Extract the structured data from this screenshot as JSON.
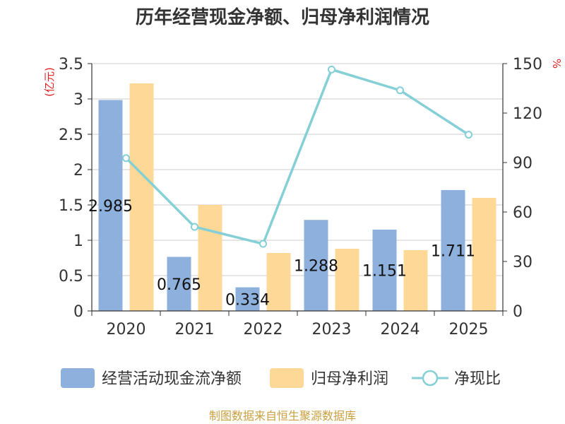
{
  "title": "历年经营现金净额、归母净利润情况",
  "source": "制图数据来自恒生聚源数据库",
  "chart_data": {
    "type": "bar",
    "categories": [
      "2020",
      "2021",
      "2022",
      "2023",
      "2024",
      "2025"
    ],
    "series": [
      {
        "name": "经营活动现金流净额",
        "kind": "bar",
        "axis": "left",
        "color": "#8eb0dc",
        "values": [
          2.985,
          0.765,
          0.334,
          1.288,
          1.151,
          1.711
        ]
      },
      {
        "name": "归母净利润",
        "kind": "bar",
        "axis": "left",
        "color": "#fdd897",
        "values": [
          3.22,
          1.5,
          0.82,
          0.88,
          0.86,
          1.6
        ]
      },
      {
        "name": "净现比",
        "kind": "line",
        "axis": "right",
        "color": "#84d0d6",
        "values": [
          92.7,
          51.0,
          40.7,
          146.4,
          133.8,
          106.9
        ]
      }
    ],
    "data_labels": [
      "2.985",
      "0.765",
      "0.334",
      "1.288",
      "1.151",
      "1.711"
    ],
    "y_left": {
      "label": "(亿元)",
      "ylim": [
        0,
        3.5
      ],
      "ticks": [
        "0",
        "0.5",
        "1",
        "1.5",
        "2",
        "2.5",
        "3",
        "3.5"
      ]
    },
    "y_right": {
      "label": "%",
      "ylim": [
        0,
        150
      ],
      "ticks": [
        "0",
        "30",
        "60",
        "90",
        "120",
        "150"
      ]
    },
    "grid": true,
    "legend_position": "bottom"
  }
}
